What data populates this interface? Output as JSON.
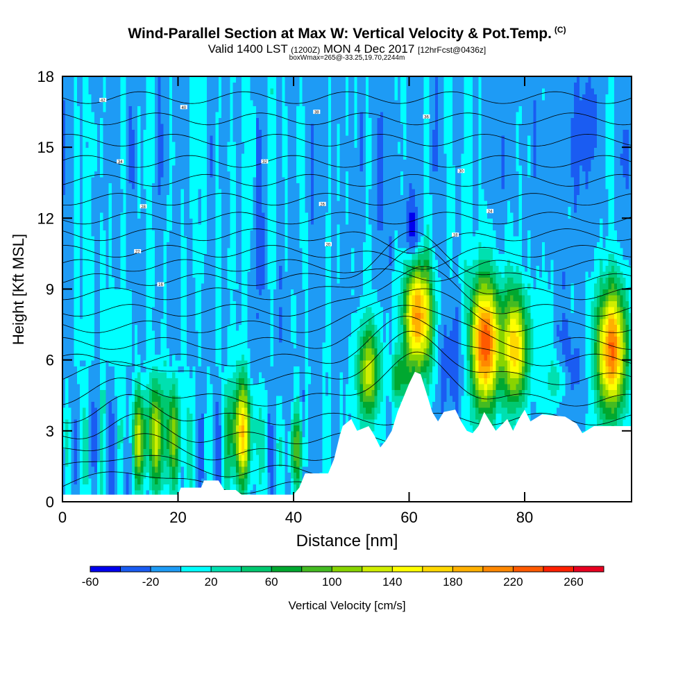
{
  "title": {
    "main": "Wind-Parallel Section at Max W: Vertical Velocity & Pot.Temp.",
    "copyright": "(C)",
    "valid_a": "Valid 1400 LST",
    "valid_z": "(1200Z)",
    "valid_b": "MON 4 Dec 2017",
    "fcst": "[12hrFcst@0436z]",
    "boxinfo": "boxWmax=265@-33.25,19.70,2244m"
  },
  "chart_data": {
    "type": "heatmap",
    "xlabel": "Distance [nm]",
    "ylabel": "Height [Kft MSL]",
    "xlim": [
      0,
      98.5
    ],
    "ylim": [
      0,
      18
    ],
    "x_ticks": [
      0,
      20,
      40,
      60,
      80
    ],
    "y_ticks": [
      0,
      3,
      6,
      9,
      12,
      15,
      18
    ],
    "grid": false,
    "colorbar": {
      "title": "Vertical Velocity [cm/s]",
      "levels": [
        -60,
        -40,
        -20,
        0,
        20,
        40,
        60,
        80,
        100,
        120,
        140,
        160,
        180,
        200,
        220,
        240,
        260,
        280
      ],
      "tick_labels": [
        "-60",
        "-20",
        "20",
        "60",
        "100",
        "140",
        "180",
        "220",
        "260"
      ],
      "colors": [
        "#0000ee",
        "#1a5cf2",
        "#1e9bf5",
        "#00ffff",
        "#00e0b0",
        "#00c870",
        "#00a830",
        "#44bb22",
        "#88d400",
        "#d0ee00",
        "#ffff00",
        "#ffd800",
        "#ffb000",
        "#ff8800",
        "#ff5a00",
        "#ff2000",
        "#e80020"
      ]
    },
    "terrain_kft": [
      [
        0,
        0.3
      ],
      [
        20,
        0.3
      ],
      [
        20.5,
        0.6
      ],
      [
        24,
        0.6
      ],
      [
        24.5,
        0.9
      ],
      [
        27,
        0.9
      ],
      [
        28,
        0.5
      ],
      [
        30,
        0.5
      ],
      [
        31,
        0.3
      ],
      [
        40,
        0.3
      ],
      [
        41,
        0.6
      ],
      [
        42,
        1.2
      ],
      [
        46,
        1.2
      ],
      [
        47,
        1.8
      ],
      [
        48,
        2.8
      ],
      [
        48.5,
        3.2
      ],
      [
        50,
        3.5
      ],
      [
        51,
        3.0
      ],
      [
        53,
        3.2
      ],
      [
        54,
        2.8
      ],
      [
        55,
        2.3
      ],
      [
        56,
        2.6
      ],
      [
        57,
        3.0
      ],
      [
        58,
        3.8
      ],
      [
        59,
        4.4
      ],
      [
        60,
        5.0
      ],
      [
        61,
        5.5
      ],
      [
        62,
        5.4
      ],
      [
        63,
        4.6
      ],
      [
        64,
        3.8
      ],
      [
        65,
        3.4
      ],
      [
        66,
        3.8
      ],
      [
        68,
        3.9
      ],
      [
        69,
        3.4
      ],
      [
        70,
        3.0
      ],
      [
        71,
        2.9
      ],
      [
        72,
        3.2
      ],
      [
        73,
        3.8
      ],
      [
        74,
        3.4
      ],
      [
        75,
        3.0
      ],
      [
        77,
        3.5
      ],
      [
        78,
        3.0
      ],
      [
        79,
        3.5
      ],
      [
        80,
        3.9
      ],
      [
        81,
        3.4
      ],
      [
        83,
        3.7
      ],
      [
        87,
        3.6
      ],
      [
        89,
        3.3
      ],
      [
        90,
        2.9
      ],
      [
        92,
        3.2
      ],
      [
        98.5,
        3.2
      ]
    ],
    "updraft_cores": [
      {
        "x": 13.5,
        "base": 0.4,
        "top": 5.0,
        "w": 100
      },
      {
        "x": 16.5,
        "base": 0.4,
        "top": 5.5,
        "w": 90
      },
      {
        "x": 19.5,
        "base": 0.5,
        "top": 5.2,
        "w": 80
      },
      {
        "x": 31.0,
        "base": 0.4,
        "top": 5.5,
        "w": 160
      },
      {
        "x": 40.5,
        "base": 0.4,
        "top": 4.0,
        "w": 80
      },
      {
        "x": 53.0,
        "base": 3.2,
        "top": 7.8,
        "w": 130
      },
      {
        "x": 58.3,
        "base": 4.0,
        "top": 6.5,
        "w": 70
      },
      {
        "x": 61.5,
        "base": 5.0,
        "top": 10.7,
        "w": 220
      },
      {
        "x": 73.0,
        "base": 3.6,
        "top": 9.8,
        "w": 255
      },
      {
        "x": 78.5,
        "base": 3.9,
        "top": 9.3,
        "w": 175
      },
      {
        "x": 86.0,
        "base": 3.8,
        "top": 6.5,
        "w": 60
      },
      {
        "x": 95.0,
        "base": 3.4,
        "top": 9.5,
        "w": 220
      }
    ],
    "theta_contour_labels": [
      "42",
      "40",
      "38",
      "36",
      "34",
      "32",
      "30",
      "28",
      "26",
      "24",
      "22",
      "20",
      "18",
      "16"
    ]
  }
}
